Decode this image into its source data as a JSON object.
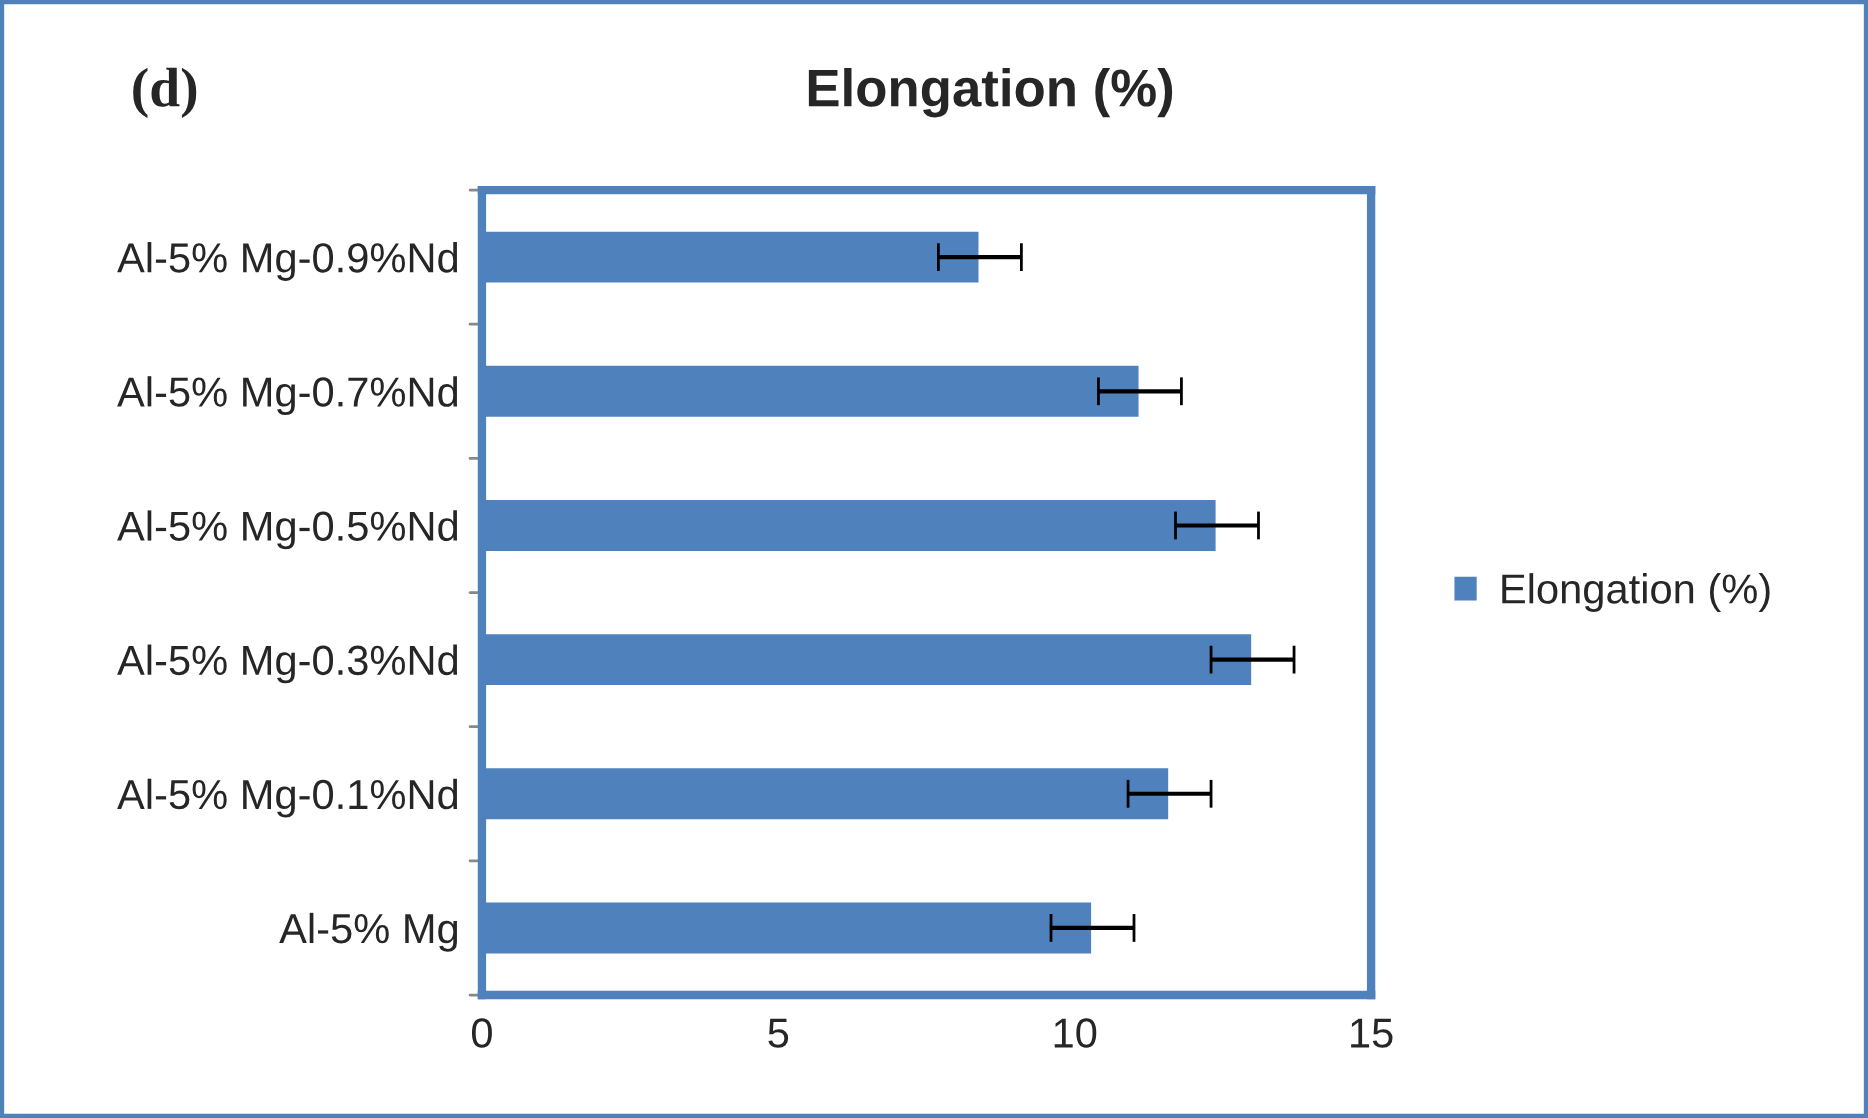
{
  "chart_data": {
    "type": "bar",
    "orientation": "horizontal",
    "title": "Elongation (%)",
    "annotations": [
      "(d)"
    ],
    "categories": [
      "Al-5% Mg-0.9%Nd",
      "Al-5% Mg-0.7%Nd",
      "Al-5% Mg-0.5%Nd",
      "Al-5% Mg-0.3%Nd",
      "Al-5% Mg-0.1%Nd",
      "Al-5% Mg"
    ],
    "series": [
      {
        "name": "Elongation (%)",
        "color": "#4f81bd",
        "values": [
          8.4,
          11.1,
          12.4,
          13.0,
          11.6,
          10.3
        ],
        "errors": [
          0.7,
          0.7,
          0.7,
          0.7,
          0.7,
          0.7
        ]
      }
    ],
    "xlim": [
      0,
      15
    ],
    "xticks": [
      0,
      5,
      10,
      15
    ],
    "grid": false,
    "legend": "right"
  }
}
